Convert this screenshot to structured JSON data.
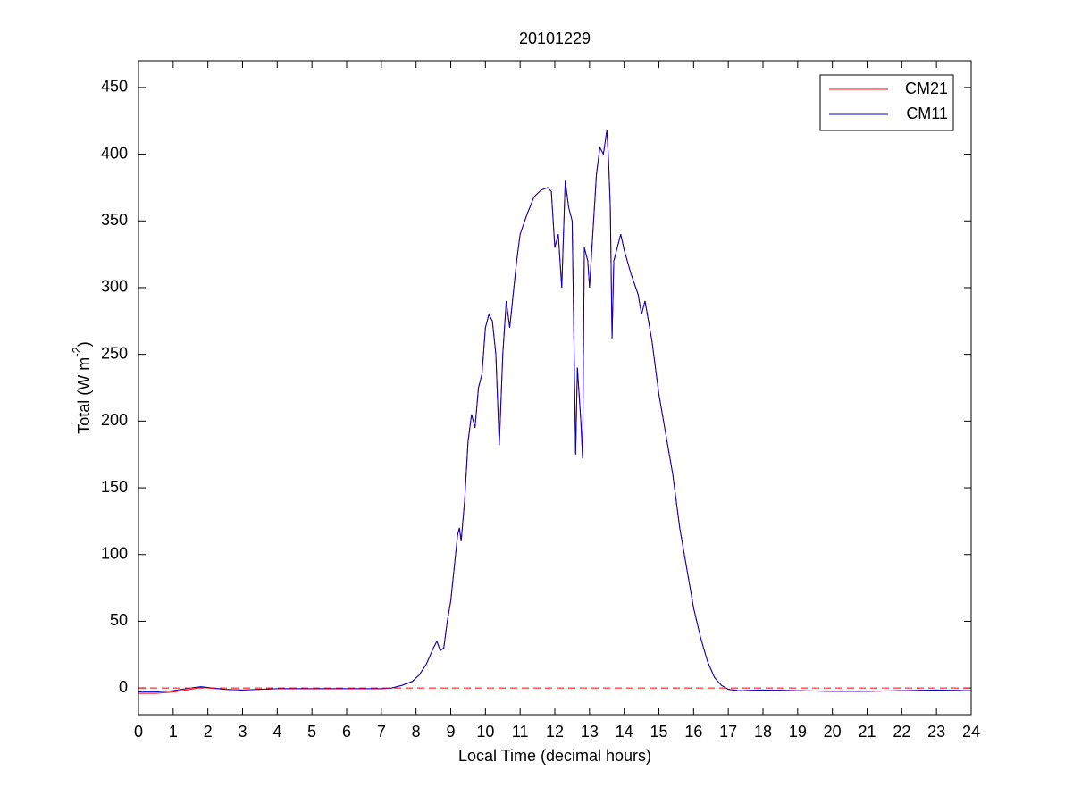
{
  "chart_data": {
    "type": "line",
    "title": "20101229",
    "xlabel": "Local Time (decimal hours)",
    "ylabel": {
      "base": "Total (W m",
      "superscript": "-2",
      "tail": ")"
    },
    "x": [
      0,
      0.5,
      1,
      1.5,
      1.8,
      2.5,
      3,
      4,
      5,
      6,
      7,
      7.3,
      7.6,
      7.9,
      8.1,
      8.3,
      8.5,
      8.6,
      8.7,
      8.8,
      8.9,
      9.0,
      9.1,
      9.2,
      9.25,
      9.3,
      9.4,
      9.5,
      9.6,
      9.7,
      9.8,
      9.9,
      10.0,
      10.1,
      10.2,
      10.3,
      10.4,
      10.5,
      10.6,
      10.7,
      10.8,
      10.9,
      11.0,
      11.2,
      11.4,
      11.6,
      11.8,
      11.9,
      12.0,
      12.1,
      12.2,
      12.3,
      12.4,
      12.5,
      12.6,
      12.65,
      12.75,
      12.8,
      12.85,
      12.95,
      13.0,
      13.2,
      13.3,
      13.4,
      13.5,
      13.55,
      13.6,
      13.65,
      13.7,
      13.8,
      13.9,
      14.0,
      14.2,
      14.4,
      14.5,
      14.6,
      14.8,
      15.0,
      15.2,
      15.4,
      15.6,
      15.8,
      16.0,
      16.2,
      16.4,
      16.6,
      16.8,
      17.0,
      17.3,
      18,
      19,
      20,
      21,
      22,
      23,
      24
    ],
    "series": [
      {
        "name": "CM21",
        "color": "#ff0000",
        "values": [
          -4,
          -4,
          -3,
          -1,
          0.5,
          -1,
          -1.5,
          -0.5,
          -0.5,
          -0.5,
          -0.5,
          0,
          2,
          5,
          10,
          18,
          30,
          35,
          28,
          30,
          50,
          65,
          90,
          115,
          120,
          110,
          140,
          185,
          205,
          195,
          225,
          235,
          270,
          280,
          275,
          250,
          182,
          250,
          290,
          270,
          295,
          320,
          340,
          355,
          368,
          373,
          375,
          372,
          330,
          340,
          300,
          380,
          360,
          350,
          175,
          240,
          200,
          172,
          330,
          320,
          300,
          385,
          405,
          400,
          418,
          395,
          360,
          262,
          320,
          330,
          340,
          328,
          310,
          295,
          280,
          290,
          260,
          220,
          190,
          160,
          120,
          90,
          60,
          38,
          20,
          8,
          2,
          -1,
          -2,
          -1.5,
          -2,
          -2.5,
          -2.5,
          -2,
          -1.5,
          -2
        ]
      },
      {
        "name": "CM11",
        "color": "#0000cc",
        "values": [
          -3,
          -3,
          -2,
          0,
          1,
          -1,
          -1.5,
          -0.5,
          -0.5,
          -0.5,
          -0.5,
          0,
          2,
          5,
          10,
          18,
          30,
          35,
          28,
          30,
          50,
          65,
          90,
          115,
          120,
          110,
          140,
          185,
          205,
          195,
          225,
          235,
          270,
          280,
          275,
          250,
          182,
          250,
          290,
          270,
          295,
          320,
          340,
          355,
          368,
          373,
          375,
          372,
          330,
          340,
          300,
          380,
          360,
          350,
          175,
          240,
          200,
          172,
          330,
          320,
          300,
          385,
          405,
          400,
          418,
          395,
          360,
          262,
          320,
          330,
          340,
          328,
          310,
          295,
          280,
          290,
          260,
          220,
          190,
          160,
          120,
          90,
          60,
          38,
          20,
          8,
          2,
          -1,
          -2,
          -1.5,
          -2,
          -2.5,
          -2.5,
          -2,
          -1.5,
          -2
        ]
      }
    ],
    "reference_line": {
      "value": 0,
      "color": "#ff0000",
      "style": "dashed"
    },
    "xlim": [
      0,
      24
    ],
    "xticks": [
      0,
      1,
      2,
      3,
      4,
      5,
      6,
      7,
      8,
      9,
      10,
      11,
      12,
      13,
      14,
      15,
      16,
      17,
      18,
      19,
      20,
      21,
      22,
      23,
      24
    ],
    "ylim": [
      -20,
      470
    ],
    "yticks": [
      0,
      50,
      100,
      150,
      200,
      250,
      300,
      350,
      400,
      450
    ],
    "grid": false,
    "legend": "northeast"
  }
}
